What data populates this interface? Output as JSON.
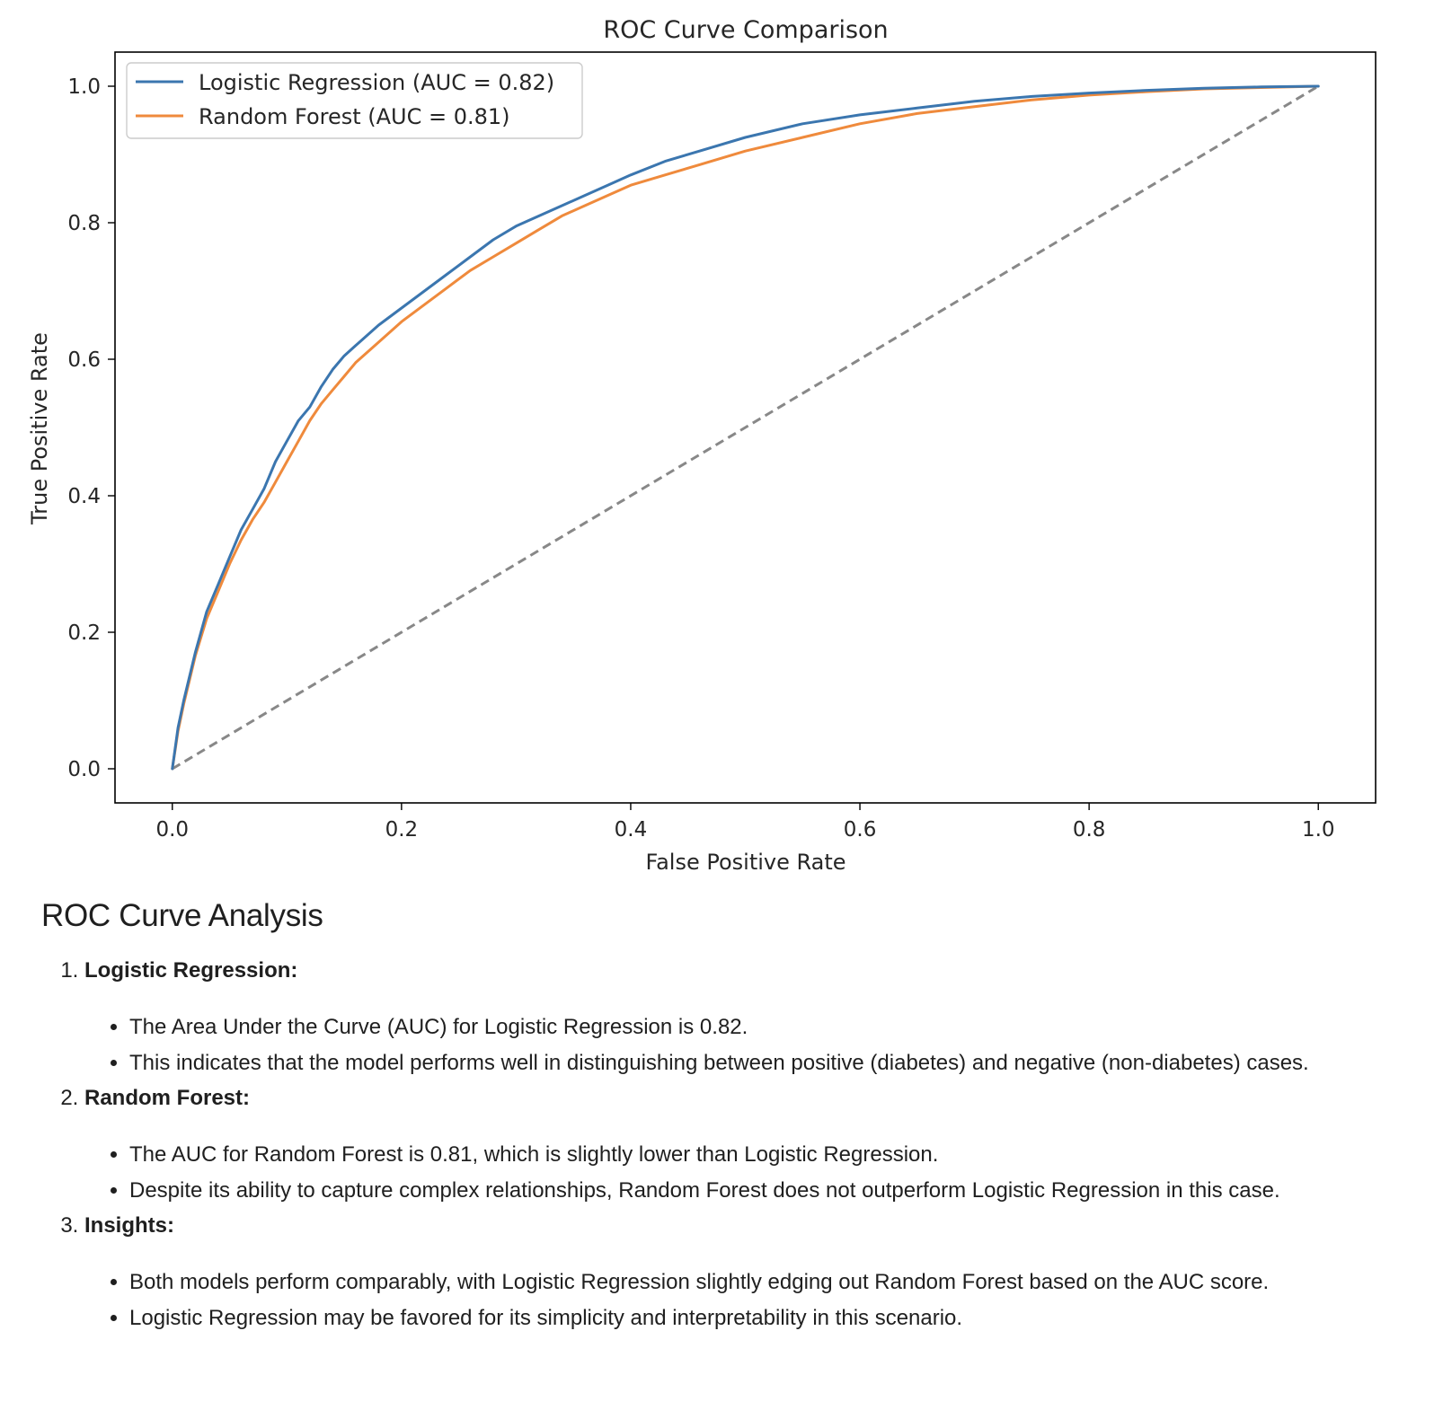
{
  "chart_data": {
    "type": "line",
    "title": "ROC Curve Comparison",
    "xlabel": "False Positive Rate",
    "ylabel": "True Positive Rate",
    "xlim": [
      -0.05,
      1.05
    ],
    "ylim": [
      -0.05,
      1.05
    ],
    "xticks": [
      "0.0",
      "0.2",
      "0.4",
      "0.6",
      "0.8",
      "1.0"
    ],
    "yticks": [
      "0.0",
      "0.2",
      "0.4",
      "0.6",
      "0.8",
      "1.0"
    ],
    "grid": false,
    "legend_position": "top-left",
    "series": [
      {
        "name": "Logistic Regression (AUC = 0.82)",
        "color": "#3b76af",
        "x": [
          0,
          0.005,
          0.01,
          0.02,
          0.03,
          0.04,
          0.05,
          0.06,
          0.07,
          0.08,
          0.09,
          0.1,
          0.11,
          0.12,
          0.13,
          0.14,
          0.15,
          0.16,
          0.18,
          0.2,
          0.22,
          0.24,
          0.26,
          0.28,
          0.3,
          0.32,
          0.34,
          0.36,
          0.38,
          0.4,
          0.43,
          0.46,
          0.5,
          0.55,
          0.6,
          0.65,
          0.7,
          0.75,
          0.8,
          0.85,
          0.9,
          0.95,
          1.0
        ],
        "y": [
          0,
          0.06,
          0.1,
          0.17,
          0.23,
          0.27,
          0.31,
          0.35,
          0.38,
          0.41,
          0.45,
          0.48,
          0.51,
          0.53,
          0.56,
          0.585,
          0.605,
          0.62,
          0.65,
          0.675,
          0.7,
          0.725,
          0.75,
          0.775,
          0.795,
          0.81,
          0.825,
          0.84,
          0.855,
          0.87,
          0.89,
          0.905,
          0.925,
          0.945,
          0.958,
          0.968,
          0.978,
          0.985,
          0.99,
          0.994,
          0.997,
          0.999,
          1.0
        ]
      },
      {
        "name": "Random Forest (AUC = 0.81)",
        "color": "#ef8a3c",
        "x": [
          0,
          0.005,
          0.01,
          0.02,
          0.03,
          0.04,
          0.05,
          0.06,
          0.07,
          0.08,
          0.09,
          0.1,
          0.11,
          0.12,
          0.13,
          0.14,
          0.15,
          0.16,
          0.18,
          0.2,
          0.22,
          0.24,
          0.26,
          0.28,
          0.3,
          0.32,
          0.34,
          0.36,
          0.38,
          0.4,
          0.43,
          0.46,
          0.5,
          0.55,
          0.6,
          0.65,
          0.7,
          0.75,
          0.8,
          0.85,
          0.9,
          0.95,
          1.0
        ],
        "y": [
          0,
          0.055,
          0.095,
          0.165,
          0.22,
          0.26,
          0.3,
          0.335,
          0.365,
          0.39,
          0.42,
          0.45,
          0.48,
          0.51,
          0.535,
          0.555,
          0.575,
          0.595,
          0.625,
          0.655,
          0.68,
          0.705,
          0.73,
          0.75,
          0.77,
          0.79,
          0.81,
          0.825,
          0.84,
          0.855,
          0.87,
          0.885,
          0.905,
          0.925,
          0.945,
          0.96,
          0.97,
          0.98,
          0.987,
          0.992,
          0.996,
          0.998,
          1.0
        ]
      },
      {
        "name": "",
        "style": "dashed",
        "color": "#888888",
        "x": [
          0,
          1
        ],
        "y": [
          0,
          1
        ]
      }
    ]
  },
  "analysis": {
    "heading": "ROC Curve Analysis",
    "sections": [
      {
        "title": "Logistic Regression:",
        "bullets": [
          "The Area Under the Curve (AUC) for Logistic Regression is 0.82.",
          "This indicates that the model performs well in distinguishing between positive (diabetes) and negative (non-diabetes) cases."
        ]
      },
      {
        "title": "Random Forest:",
        "bullets": [
          "The AUC for Random Forest is 0.81, which is slightly lower than Logistic Regression.",
          "Despite its ability to capture complex relationships, Random Forest does not outperform Logistic Regression in this case."
        ]
      },
      {
        "title": "Insights:",
        "bullets": [
          "Both models perform comparably, with Logistic Regression slightly edging out Random Forest based on the AUC score.",
          "Logistic Regression may be favored for its simplicity and interpretability in this scenario."
        ]
      }
    ]
  }
}
